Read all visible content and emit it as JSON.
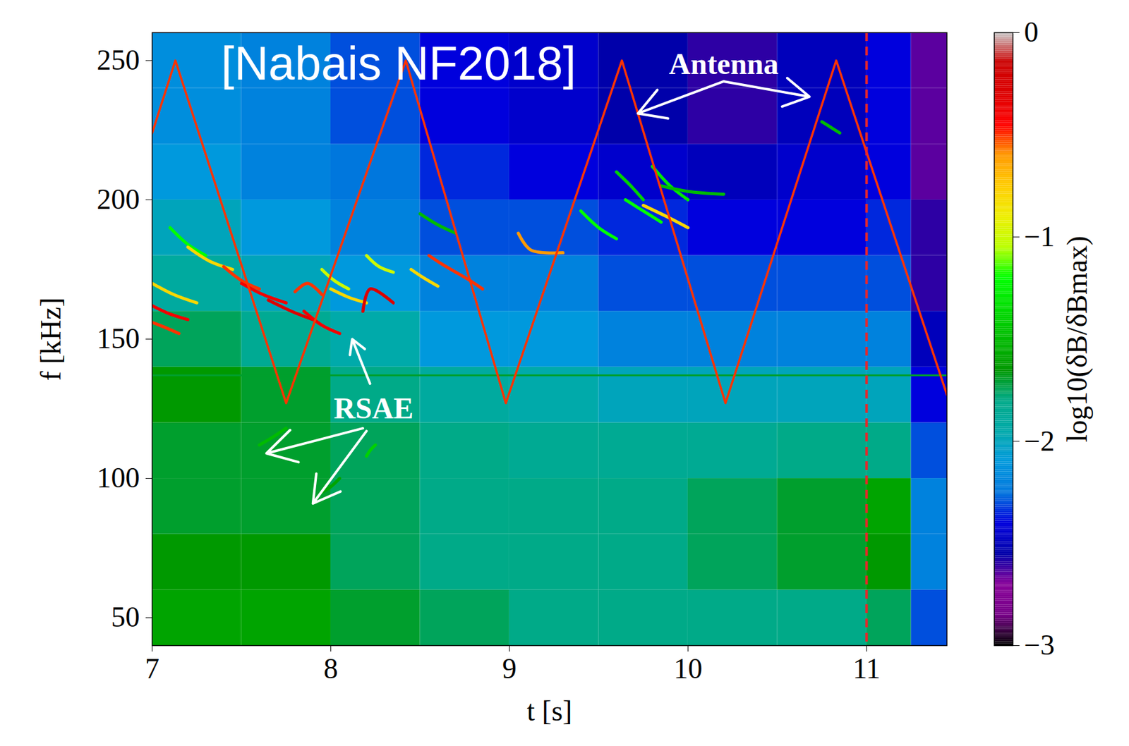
{
  "chart_data": {
    "type": "spectrogram",
    "xlabel": "t [s]",
    "ylabel": "f [kHz]",
    "xlim": [
      7,
      11.45
    ],
    "ylim": [
      40,
      260
    ],
    "xticks": [
      7,
      8,
      9,
      10,
      11
    ],
    "yticks": [
      50,
      100,
      150,
      200,
      250
    ],
    "colorbar": {
      "label": "log10(δB/δBmax)",
      "lim": [
        -3,
        0
      ],
      "ticks": [
        0,
        -1,
        -2,
        -3
      ]
    },
    "cells": {
      "t_edges": [
        7,
        7.5,
        8,
        8.5,
        9,
        9.5,
        10,
        10.5,
        11,
        11.25,
        11.45
      ],
      "f_edges": [
        40,
        60,
        80,
        100,
        120,
        140,
        160,
        180,
        200,
        220,
        240,
        260
      ],
      "values": [
        [
          -1.6,
          -1.6,
          -1.7,
          -1.75,
          -1.8,
          -1.8,
          -1.8,
          -1.8,
          -1.75,
          -2.3
        ],
        [
          -1.65,
          -1.65,
          -1.75,
          -1.8,
          -1.8,
          -1.8,
          -1.75,
          -1.7,
          -1.65,
          -2.2
        ],
        [
          -1.7,
          -1.7,
          -1.75,
          -1.8,
          -1.8,
          -1.8,
          -1.75,
          -1.7,
          -1.6,
          -2.2
        ],
        [
          -1.7,
          -1.7,
          -1.75,
          -1.8,
          -1.85,
          -1.85,
          -1.85,
          -1.8,
          -1.8,
          -2.3
        ],
        [
          -1.65,
          -1.7,
          -1.8,
          -1.9,
          -1.95,
          -2.0,
          -2.0,
          -2.0,
          -2.0,
          -2.4
        ],
        [
          -1.75,
          -1.85,
          -1.95,
          -2.1,
          -2.1,
          -2.2,
          -2.2,
          -2.2,
          -2.2,
          -2.5
        ],
        [
          -1.9,
          -2.0,
          -2.1,
          -2.2,
          -2.2,
          -2.3,
          -2.3,
          -2.3,
          -2.3,
          -2.6
        ],
        [
          -2.0,
          -2.1,
          -2.2,
          -2.3,
          -2.3,
          -2.35,
          -2.4,
          -2.4,
          -2.35,
          -2.6
        ],
        [
          -2.1,
          -2.2,
          -2.25,
          -2.35,
          -2.4,
          -2.45,
          -2.5,
          -2.45,
          -2.4,
          -2.65
        ],
        [
          -2.15,
          -2.2,
          -2.3,
          -2.4,
          -2.45,
          -2.55,
          -2.6,
          -2.5,
          -2.4,
          -2.65
        ],
        [
          -2.15,
          -2.2,
          -2.3,
          -2.4,
          -2.45,
          -2.55,
          -2.6,
          -2.5,
          -2.4,
          -2.65
        ]
      ]
    },
    "hlines": [
      {
        "f": 137,
        "value": -1.7
      }
    ],
    "antenna": {
      "t": [
        7,
        7.13,
        7.75,
        8.42,
        8.98,
        9.63,
        10.21,
        10.83,
        11.45
      ],
      "f": [
        224,
        250,
        127,
        250,
        127,
        250,
        127,
        250,
        130
      ],
      "value": -0.5
    },
    "modes": [
      {
        "t": [
          7.0,
          7.12,
          7.25
        ],
        "f": [
          170,
          166,
          163
        ],
        "value": -0.8
      },
      {
        "t": [
          7.0,
          7.1,
          7.2
        ],
        "f": [
          162,
          159,
          157
        ],
        "value": -0.4
      },
      {
        "t": [
          7.0,
          7.08,
          7.15
        ],
        "f": [
          156,
          154,
          152
        ],
        "value": -0.5
      },
      {
        "t": [
          7.1,
          7.2,
          7.3
        ],
        "f": [
          190,
          184,
          180
        ],
        "value": -1.2
      },
      {
        "t": [
          7.2,
          7.32,
          7.45
        ],
        "f": [
          183,
          178,
          175
        ],
        "value": -0.8
      },
      {
        "t": [
          7.4,
          7.5,
          7.6
        ],
        "f": [
          176,
          171,
          168
        ],
        "value": -0.5
      },
      {
        "t": [
          7.5,
          7.62,
          7.75
        ],
        "f": [
          170,
          166,
          163
        ],
        "value": -0.4
      },
      {
        "t": [
          7.65,
          7.78,
          7.9
        ],
        "f": [
          164,
          160,
          157
        ],
        "value": -0.3
      },
      {
        "t": [
          7.8,
          7.87,
          7.95
        ],
        "f": [
          167,
          170,
          166
        ],
        "value": -0.5
      },
      {
        "t": [
          7.85,
          7.95,
          8.05
        ],
        "f": [
          160,
          155,
          152
        ],
        "value": -0.4
      },
      {
        "t": [
          7.95,
          8.02,
          8.1
        ],
        "f": [
          175,
          171,
          168
        ],
        "value": -1.0
      },
      {
        "t": [
          8.0,
          8.1,
          8.2
        ],
        "f": [
          168,
          165,
          163
        ],
        "value": -0.8
      },
      {
        "t": [
          8.18,
          8.22,
          8.35
        ],
        "f": [
          160,
          168,
          163
        ],
        "value": -0.3
      },
      {
        "t": [
          8.2,
          8.27,
          8.35
        ],
        "f": [
          180,
          176,
          174
        ],
        "value": -1.0
      },
      {
        "t": [
          8.45,
          8.52,
          8.6
        ],
        "f": [
          175,
          172,
          169
        ],
        "value": -0.8
      },
      {
        "t": [
          8.55,
          8.62,
          8.7
        ],
        "f": [
          180,
          177,
          174
        ],
        "value": -0.5
      },
      {
        "t": [
          8.7,
          8.78,
          8.85
        ],
        "f": [
          174,
          171,
          168
        ],
        "value": -0.5
      },
      {
        "t": [
          8.5,
          8.6,
          8.7
        ],
        "f": [
          195,
          191,
          188
        ],
        "value": -1.5
      },
      {
        "t": [
          9.05,
          9.12,
          9.3
        ],
        "f": [
          188,
          182,
          181
        ],
        "value": -0.6
      },
      {
        "t": [
          9.4,
          9.5,
          9.6
        ],
        "f": [
          196,
          190,
          186
        ],
        "value": -1.2
      },
      {
        "t": [
          9.6,
          9.68,
          9.75
        ],
        "f": [
          210,
          205,
          200
        ],
        "value": -1.4
      },
      {
        "t": [
          9.65,
          9.75,
          9.85
        ],
        "f": [
          200,
          196,
          192
        ],
        "value": -1.2
      },
      {
        "t": [
          9.75,
          9.88,
          10.0
        ],
        "f": [
          198,
          194,
          190
        ],
        "value": -0.8
      },
      {
        "t": [
          9.8,
          9.9,
          10.0
        ],
        "f": [
          212,
          205,
          200
        ],
        "value": -1.3
      },
      {
        "t": [
          9.85,
          10.0,
          10.2
        ],
        "f": [
          205,
          203,
          202
        ],
        "value": -1.5
      },
      {
        "t": [
          10.75,
          10.8,
          10.85
        ],
        "f": [
          228,
          226,
          224
        ],
        "value": -1.5
      },
      {
        "t": [
          7.6,
          7.68,
          7.75
        ],
        "f": [
          112,
          115,
          118
        ],
        "value": -1.5
      },
      {
        "t": [
          7.95,
          8.0,
          8.05
        ],
        "f": [
          95,
          97,
          100
        ],
        "value": -1.6
      },
      {
        "t": [
          8.2,
          8.22,
          8.25
        ],
        "f": [
          108,
          110,
          112
        ],
        "value": -1.4
      }
    ],
    "vline": {
      "t": 11.0,
      "color": "#e8262a",
      "line_style": "dashed"
    },
    "annotations": [
      {
        "text": "[Nabais NF2018]",
        "t": 8.38,
        "f": 248.5
      },
      {
        "text": "Antenna",
        "t": 10.2,
        "f": 248.5,
        "arrows": [
          {
            "from": [
              10.2,
              242.5
            ],
            "to": [
              9.72,
              231
            ]
          },
          {
            "from": [
              10.2,
              242.5
            ],
            "to": [
              10.68,
              237
            ]
          }
        ]
      },
      {
        "text": "RSAE",
        "t": 8.24,
        "f": 125,
        "arrows": [
          {
            "from": [
              8.18,
              118
            ],
            "to": [
              7.64,
              109
            ]
          },
          {
            "from": [
              8.2,
              117
            ],
            "to": [
              7.9,
              91
            ]
          },
          {
            "from": [
              8.22,
              134
            ],
            "to": [
              8.12,
              150
            ]
          }
        ]
      }
    ]
  }
}
